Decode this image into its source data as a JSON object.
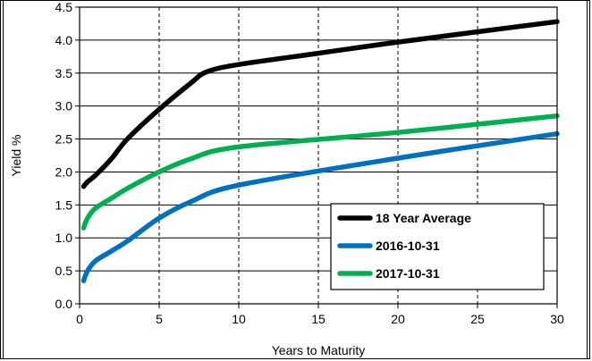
{
  "chart_data": {
    "type": "line",
    "title": "",
    "xlabel": "Years to Maturity",
    "ylabel": "Yield %",
    "xlim": [
      0,
      30
    ],
    "ylim": [
      0,
      4.5
    ],
    "x_ticks": [
      0,
      5,
      10,
      15,
      20,
      25,
      30
    ],
    "y_ticks": [
      "0.0",
      "0.5",
      "1.0",
      "1.5",
      "2.0",
      "2.5",
      "3.0",
      "3.5",
      "4.0",
      "4.5"
    ],
    "grid": "dashed vertical and solid horizontal",
    "legend_position": "bottom-right",
    "series": [
      {
        "name": "18 Year Average",
        "color": "#000000",
        "x": [
          0.25,
          0.5,
          1,
          2,
          3,
          5,
          7,
          8,
          10,
          15,
          20,
          30
        ],
        "y": [
          1.78,
          1.85,
          1.95,
          2.2,
          2.5,
          2.95,
          3.35,
          3.52,
          3.63,
          3.8,
          3.97,
          4.28
        ]
      },
      {
        "name": "2016-10-31",
        "color": "#0070c0",
        "x": [
          0.25,
          0.5,
          1,
          2,
          3,
          5,
          7,
          10,
          20,
          30
        ],
        "y": [
          0.35,
          0.5,
          0.65,
          0.8,
          0.95,
          1.3,
          1.55,
          1.8,
          2.21,
          2.58
        ]
      },
      {
        "name": "2017-10-31",
        "color": "#00b050",
        "x": [
          0.25,
          0.5,
          1,
          2,
          3,
          5,
          7,
          10,
          20,
          30
        ],
        "y": [
          1.15,
          1.3,
          1.45,
          1.6,
          1.75,
          2.0,
          2.2,
          2.38,
          2.6,
          2.85
        ]
      }
    ]
  }
}
